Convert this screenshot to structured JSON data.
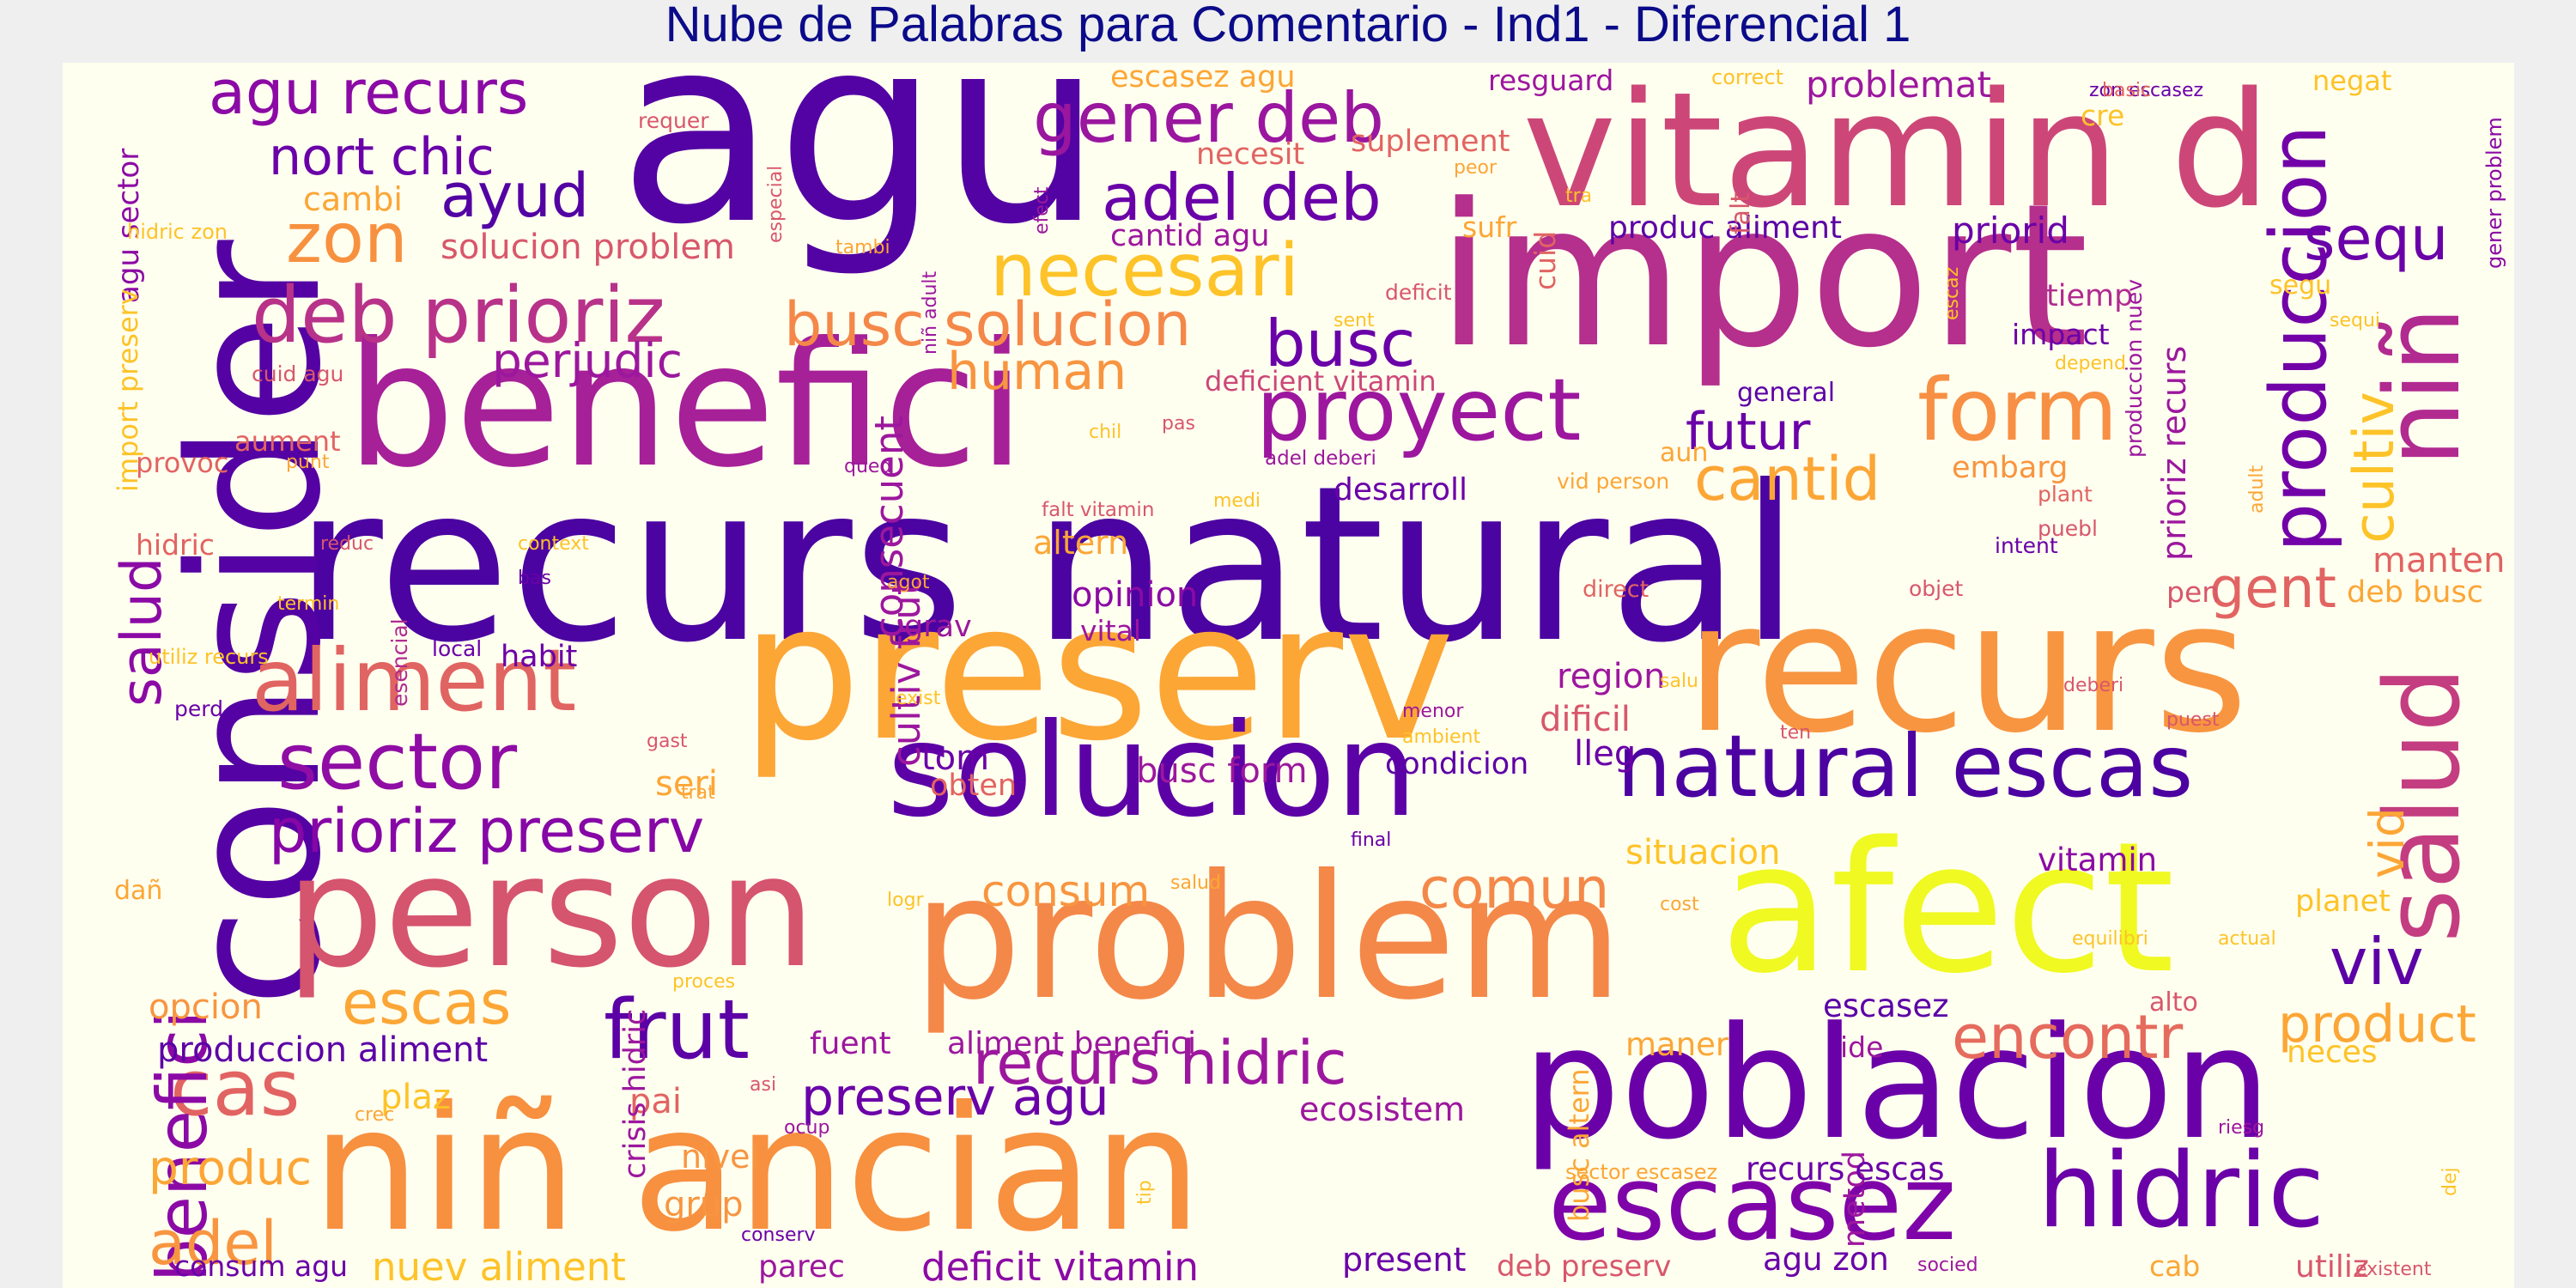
{
  "title": "Nube de Palabras para Comentario - Ind1 - Diferencial 1",
  "colormap": "plasma",
  "words": [
    {
      "text": "recurs natural",
      "color": "#4b03a1"
    },
    {
      "text": "agu",
      "color": "#5302a3"
    },
    {
      "text": "consider",
      "color": "#5402a3"
    },
    {
      "text": "import",
      "color": "#b52f8c"
    },
    {
      "text": "benefici",
      "color": "#a62098"
    },
    {
      "text": "vitamin d",
      "color": "#cc4778"
    },
    {
      "text": "preserv",
      "color": "#fca636"
    },
    {
      "text": "recurs",
      "color": "#f89540"
    },
    {
      "text": "afect",
      "color": "#f0f921"
    },
    {
      "text": "problem",
      "color": "#f48849"
    },
    {
      "text": "poblacion",
      "color": "#6a00a8"
    },
    {
      "text": "person",
      "color": "#d5546e"
    },
    {
      "text": "niñ ancian",
      "color": "#f7903f"
    },
    {
      "text": "solucion",
      "color": "#5c01a6"
    },
    {
      "text": "escasez",
      "color": "#7e03a8"
    },
    {
      "text": "hidric",
      "color": "#6a00a8"
    },
    {
      "text": "salud",
      "color": "#c33d80"
    },
    {
      "text": "niñ",
      "color": "#b12a90"
    },
    {
      "text": "natural escas",
      "color": "#4c02a1"
    },
    {
      "text": "aliment",
      "color": "#e06461"
    },
    {
      "text": "sector",
      "color": "#8f0da4"
    },
    {
      "text": "proyect",
      "color": "#9c179e"
    },
    {
      "text": "deb prioriz",
      "color": "#b83289"
    },
    {
      "text": "produccion",
      "color": "#7201a8"
    },
    {
      "text": "form",
      "color": "#f79044"
    },
    {
      "text": "frut",
      "color": "#5b01a5"
    },
    {
      "text": "necesari",
      "color": "#fdc328"
    },
    {
      "text": "gener deb",
      "color": "#9a169f"
    },
    {
      "text": "adel deb",
      "color": "#6a00a8"
    },
    {
      "text": "zon",
      "color": "#f7913f"
    },
    {
      "text": "busc solucion",
      "color": "#f48849"
    },
    {
      "text": "busc",
      "color": "#6a00a8"
    },
    {
      "text": "agu recurs",
      "color": "#8b0aa5"
    },
    {
      "text": "nort chic",
      "color": "#6a00a8"
    },
    {
      "text": "ayud",
      "color": "#5302a3"
    },
    {
      "text": "prioriz preserv",
      "color": "#8606a6"
    },
    {
      "text": "cas",
      "color": "#e16462"
    },
    {
      "text": "escas",
      "color": "#fca636"
    },
    {
      "text": "benefici",
      "color": "#8b0aa5"
    },
    {
      "text": "recurs hidric",
      "color": "#9c179e"
    },
    {
      "text": "preserv agu",
      "color": "#6a00a8"
    },
    {
      "text": "encontr",
      "color": "#e56b5d"
    },
    {
      "text": "comun",
      "color": "#f48849"
    },
    {
      "text": "viv",
      "color": "#5c01a6"
    },
    {
      "text": "product",
      "color": "#fca636"
    },
    {
      "text": "cantid",
      "color": "#fca636"
    },
    {
      "text": "futur",
      "color": "#6a00a8"
    },
    {
      "text": "sequ",
      "color": "#6a00a8"
    },
    {
      "text": "cultiv",
      "color": "#fdc328"
    },
    {
      "text": "gent",
      "color": "#e16462"
    },
    {
      "text": "human",
      "color": "#f89540"
    },
    {
      "text": "perjudic",
      "color": "#9c179e"
    },
    {
      "text": "produc",
      "color": "#fca636"
    },
    {
      "text": "adel",
      "color": "#f89540"
    },
    {
      "text": "consum",
      "color": "#f89540"
    },
    {
      "text": "vid",
      "color": "#fca636"
    },
    {
      "text": "salud",
      "color": "#8b0aa5"
    },
    {
      "text": "solucion problem",
      "color": "#d8576b"
    },
    {
      "text": "problemat",
      "color": "#9c179e"
    },
    {
      "text": "priorid",
      "color": "#6a00a8"
    },
    {
      "text": "produc aliment",
      "color": "#5c01a6"
    },
    {
      "text": "cantid agu",
      "color": "#9c179e"
    },
    {
      "text": "necesit",
      "color": "#e16462"
    },
    {
      "text": "suplement",
      "color": "#e16462"
    },
    {
      "text": "cambi",
      "color": "#fca636"
    },
    {
      "text": "escasez agu",
      "color": "#fca636"
    },
    {
      "text": "resguard",
      "color": "#9c179e"
    },
    {
      "text": "tiemp",
      "color": "#b12a90"
    },
    {
      "text": "impact",
      "color": "#6a00a8"
    },
    {
      "text": "segu",
      "color": "#fdc328"
    },
    {
      "text": "deficient vitamin",
      "color": "#cc4778"
    },
    {
      "text": "general",
      "color": "#5c01a6"
    },
    {
      "text": "desarroll",
      "color": "#6a00a8"
    },
    {
      "text": "embarg",
      "color": "#f89540"
    },
    {
      "text": "aun",
      "color": "#fca636"
    },
    {
      "text": "altern",
      "color": "#fca636"
    },
    {
      "text": "opinion",
      "color": "#8b0aa5"
    },
    {
      "text": "vital",
      "color": "#9c179e"
    },
    {
      "text": "grav",
      "color": "#9c179e"
    },
    {
      "text": "consecuent",
      "color": "#9c179e"
    },
    {
      "text": "cultiv frut",
      "color": "#9c179e"
    },
    {
      "text": "region",
      "color": "#9c179e"
    },
    {
      "text": "dificil",
      "color": "#d8576b"
    },
    {
      "text": "lleg",
      "color": "#6a00a8"
    },
    {
      "text": "condicion",
      "color": "#5c01a6"
    },
    {
      "text": "busc form",
      "color": "#9c179e"
    },
    {
      "text": "tom",
      "color": "#6a00a8"
    },
    {
      "text": "obten",
      "color": "#e16462"
    },
    {
      "text": "seri",
      "color": "#fca636"
    },
    {
      "text": "habit",
      "color": "#6a00a8"
    },
    {
      "text": "situacion",
      "color": "#fdc328"
    },
    {
      "text": "vitamin",
      "color": "#8b0aa5"
    },
    {
      "text": "manten",
      "color": "#e16462"
    },
    {
      "text": "deb busc",
      "color": "#fca636"
    },
    {
      "text": "pen",
      "color": "#d8576b"
    },
    {
      "text": "prioriz recurs",
      "color": "#9c179e"
    },
    {
      "text": "produccion aliment",
      "color": "#5c01a6"
    },
    {
      "text": "fuent",
      "color": "#9c179e"
    },
    {
      "text": "aliment benefici",
      "color": "#9c179e"
    },
    {
      "text": "opcion",
      "color": "#f89540"
    },
    {
      "text": "plaz",
      "color": "#fdc328"
    },
    {
      "text": "pai",
      "color": "#e16462"
    },
    {
      "text": "nivel",
      "color": "#f89540"
    },
    {
      "text": "grup",
      "color": "#f89540"
    },
    {
      "text": "ecosistem",
      "color": "#9c179e"
    },
    {
      "text": "escasez",
      "color": "#5c01a6"
    },
    {
      "text": "maner",
      "color": "#fca636"
    },
    {
      "text": "ide",
      "color": "#9c179e"
    },
    {
      "text": "alto",
      "color": "#d8576b"
    },
    {
      "text": "neces",
      "color": "#fdc328"
    },
    {
      "text": "planet",
      "color": "#fdc328"
    },
    {
      "text": "crisis hidric",
      "color": "#9c179e"
    },
    {
      "text": "busc altern",
      "color": "#fca636"
    },
    {
      "text": "metod",
      "color": "#9c179e"
    },
    {
      "text": "recurs escas",
      "color": "#6a00a8"
    },
    {
      "text": "sector escasez",
      "color": "#fca636"
    },
    {
      "text": "nuev aliment",
      "color": "#fdc328"
    },
    {
      "text": "consum agu",
      "color": "#6a00a8"
    },
    {
      "text": "parec",
      "color": "#9c179e"
    },
    {
      "text": "deficit vitamin",
      "color": "#8b0aa5"
    },
    {
      "text": "present",
      "color": "#6a00a8"
    },
    {
      "text": "deb preserv",
      "color": "#d8576b"
    },
    {
      "text": "agu zon",
      "color": "#6a00a8"
    },
    {
      "text": "cab",
      "color": "#fca636"
    },
    {
      "text": "utiliz",
      "color": "#d8576b"
    },
    {
      "text": "agu sector",
      "color": "#8b0aa5"
    },
    {
      "text": "import preserv",
      "color": "#fdc328"
    },
    {
      "text": "provoc",
      "color": "#e16462"
    },
    {
      "text": "hidric",
      "color": "#e16462"
    },
    {
      "text": "aument",
      "color": "#e16462"
    },
    {
      "text": "gener problem",
      "color": "#8b0aa5"
    },
    {
      "text": "correct",
      "color": "#fdc328"
    },
    {
      "text": "negat",
      "color": "#fdc328"
    },
    {
      "text": "cre",
      "color": "#fdc328"
    },
    {
      "text": "zon escasez",
      "color": "#6a00a8"
    },
    {
      "text": "basic",
      "color": "#e16462"
    },
    {
      "text": "sufr",
      "color": "#fca636"
    },
    {
      "text": "cuid",
      "color": "#e16462"
    },
    {
      "text": "falt",
      "color": "#d8576b"
    },
    {
      "text": "peor",
      "color": "#fca636"
    },
    {
      "text": "deficit",
      "color": "#d8576b"
    },
    {
      "text": "local",
      "color": "#6a00a8"
    },
    {
      "text": "dañ",
      "color": "#fca636"
    },
    {
      "text": "esencial",
      "color": "#b12a90"
    },
    {
      "text": "produccion nuev",
      "color": "#9c179e"
    },
    {
      "text": "vid person",
      "color": "#fca636"
    },
    {
      "text": "falt vitamin",
      "color": "#d8576b"
    },
    {
      "text": "adel deberi",
      "color": "#9c179e"
    },
    {
      "text": "intent",
      "color": "#6a00a8"
    },
    {
      "text": "objet",
      "color": "#d8576b"
    },
    {
      "text": "direct",
      "color": "#e16462"
    },
    {
      "text": "plant",
      "color": "#e16462"
    },
    {
      "text": "puebl",
      "color": "#d8576b"
    },
    {
      "text": "adult",
      "color": "#fca636"
    },
    {
      "text": "depend",
      "color": "#fdc328"
    },
    {
      "text": "sequi",
      "color": "#fdc328"
    },
    {
      "text": "escaz",
      "color": "#fdc328"
    },
    {
      "text": "sent",
      "color": "#fdc328"
    },
    {
      "text": "tra",
      "color": "#fdc328"
    },
    {
      "text": "requer",
      "color": "#d8576b"
    },
    {
      "text": "especial",
      "color": "#d8576b"
    },
    {
      "text": "efect",
      "color": "#9c179e"
    },
    {
      "text": "niñ adult",
      "color": "#9c179e"
    },
    {
      "text": "tambi",
      "color": "#fca636"
    },
    {
      "text": "hidric zon",
      "color": "#fdc328"
    },
    {
      "text": "cuid agu",
      "color": "#d8576b"
    },
    {
      "text": "chil",
      "color": "#fdc328"
    },
    {
      "text": "pas",
      "color": "#d8576b"
    },
    {
      "text": "qued",
      "color": "#9c179e"
    },
    {
      "text": "medi",
      "color": "#fdc328"
    },
    {
      "text": "reduc",
      "color": "#d8576b"
    },
    {
      "text": "context",
      "color": "#fdc328"
    },
    {
      "text": "bas",
      "color": "#6a00a8"
    },
    {
      "text": "punt",
      "color": "#fca636"
    },
    {
      "text": "termin",
      "color": "#fdc328"
    },
    {
      "text": "utiliz recurs",
      "color": "#fdc328"
    },
    {
      "text": "perd",
      "color": "#6a00a8"
    },
    {
      "text": "gast",
      "color": "#d8576b"
    },
    {
      "text": "trat",
      "color": "#fca636"
    },
    {
      "text": "exist",
      "color": "#fdc328"
    },
    {
      "text": "agot",
      "color": "#fca636"
    },
    {
      "text": "menor",
      "color": "#9c179e"
    },
    {
      "text": "ambient",
      "color": "#fdc328"
    },
    {
      "text": "salu",
      "color": "#fdc328"
    },
    {
      "text": "ten",
      "color": "#d8576b"
    },
    {
      "text": "deberi",
      "color": "#d8576b"
    },
    {
      "text": "puest",
      "color": "#d8576b"
    },
    {
      "text": "final",
      "color": "#6a00a8"
    },
    {
      "text": "salud",
      "color": "#fca636"
    },
    {
      "text": "logr",
      "color": "#fdc328"
    },
    {
      "text": "cost",
      "color": "#fca636"
    },
    {
      "text": "equilibri",
      "color": "#fdc328"
    },
    {
      "text": "actual",
      "color": "#fdc328"
    },
    {
      "text": "proces",
      "color": "#fdc328"
    },
    {
      "text": "asi",
      "color": "#d8576b"
    },
    {
      "text": "ocup",
      "color": "#9c179e"
    },
    {
      "text": "crec",
      "color": "#fca636"
    },
    {
      "text": "tip",
      "color": "#fdc328"
    },
    {
      "text": "riesg",
      "color": "#9c179e"
    },
    {
      "text": "dej",
      "color": "#fdc328"
    },
    {
      "text": "conserv",
      "color": "#6a00a8"
    },
    {
      "text": "socied",
      "color": "#9c179e"
    },
    {
      "text": "existent",
      "color": "#d8576b"
    }
  ]
}
